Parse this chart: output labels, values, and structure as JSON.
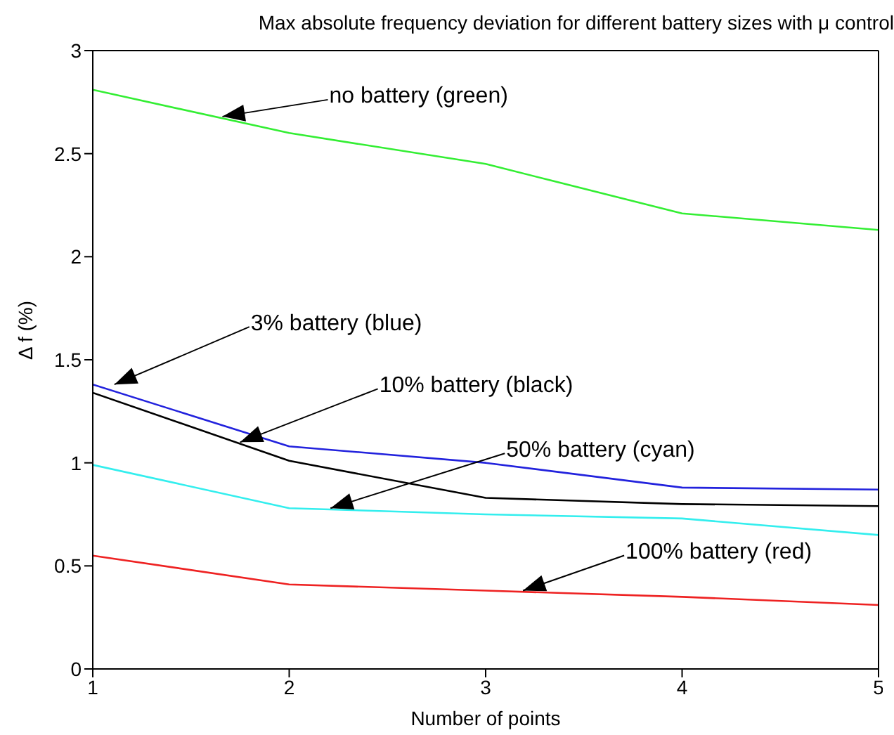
{
  "chart_data": {
    "type": "line",
    "title": "Max absolute frequency deviation for different battery sizes with μ control",
    "xlabel": "Number of points",
    "ylabel": "Δ f (%)",
    "x": [
      1,
      2,
      3,
      4,
      5
    ],
    "xlim": [
      1,
      5
    ],
    "xticks": [
      1,
      2,
      3,
      4,
      5
    ],
    "ylim": [
      0,
      3
    ],
    "yticks": [
      0,
      0.5,
      1,
      1.5,
      2,
      2.5,
      3
    ],
    "marker": "none",
    "line_style": "solid",
    "series": [
      {
        "color": "#33ee33",
        "values": [
          2.81,
          2.6,
          2.45,
          2.21,
          2.13
        ]
      },
      {
        "color": "#2222dd",
        "values": [
          1.38,
          1.08,
          1.0,
          0.88,
          0.87
        ]
      },
      {
        "color": "#000000",
        "values": [
          1.34,
          1.01,
          0.83,
          0.8,
          0.79
        ]
      },
      {
        "color": "#33eeee",
        "values": [
          0.99,
          0.78,
          0.75,
          0.73,
          0.65
        ]
      },
      {
        "color": "#ee2222",
        "values": [
          0.55,
          0.41,
          0.38,
          0.35,
          0.31
        ]
      }
    ],
    "annotations": [
      {
        "text": "no battery (green)",
        "x": 1.66,
        "y": 2.68
      },
      {
        "text": "3% battery (blue)",
        "x": 1.11,
        "y": 1.38
      },
      {
        "text": "10% battery (black)",
        "x": 1.75,
        "y": 1.1
      },
      {
        "text": "50% battery (cyan)",
        "x": 2.21,
        "y": 0.78
      },
      {
        "text": "100% battery (red)",
        "x": 3.19,
        "y": 0.38
      }
    ]
  }
}
